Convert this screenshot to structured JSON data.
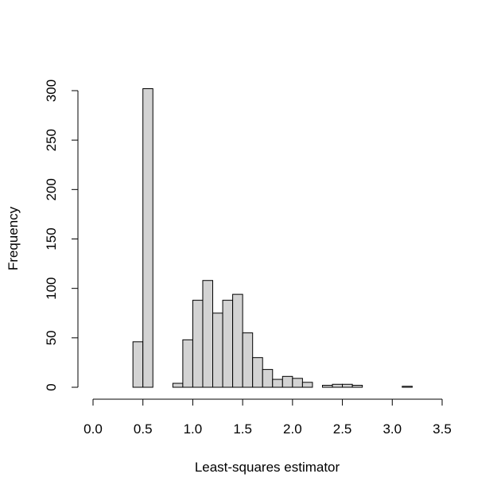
{
  "chart_data": {
    "type": "bar",
    "title": "",
    "xlabel": "Least-squares estimator",
    "ylabel": "Frequency",
    "xlim": [
      0.0,
      3.5
    ],
    "ylim": [
      0,
      300
    ],
    "x_ticks": [
      "0.0",
      "0.5",
      "1.0",
      "1.5",
      "2.0",
      "2.5",
      "3.0",
      "3.5"
    ],
    "y_ticks": [
      "0",
      "50",
      "100",
      "150",
      "200",
      "250",
      "300"
    ],
    "bin_width": 0.1,
    "bins": [
      {
        "start": 0.4,
        "end": 0.5,
        "count": 46
      },
      {
        "start": 0.5,
        "end": 0.6,
        "count": 302
      },
      {
        "start": 0.6,
        "end": 0.7,
        "count": 0
      },
      {
        "start": 0.7,
        "end": 0.8,
        "count": 0
      },
      {
        "start": 0.8,
        "end": 0.9,
        "count": 4
      },
      {
        "start": 0.9,
        "end": 1.0,
        "count": 48
      },
      {
        "start": 1.0,
        "end": 1.1,
        "count": 88
      },
      {
        "start": 1.1,
        "end": 1.2,
        "count": 108
      },
      {
        "start": 1.2,
        "end": 1.3,
        "count": 75
      },
      {
        "start": 1.3,
        "end": 1.4,
        "count": 88
      },
      {
        "start": 1.4,
        "end": 1.5,
        "count": 94
      },
      {
        "start": 1.5,
        "end": 1.6,
        "count": 55
      },
      {
        "start": 1.6,
        "end": 1.7,
        "count": 30
      },
      {
        "start": 1.7,
        "end": 1.8,
        "count": 18
      },
      {
        "start": 1.8,
        "end": 1.9,
        "count": 8
      },
      {
        "start": 1.9,
        "end": 2.0,
        "count": 11
      },
      {
        "start": 2.0,
        "end": 2.1,
        "count": 9
      },
      {
        "start": 2.1,
        "end": 2.2,
        "count": 5
      },
      {
        "start": 2.2,
        "end": 2.3,
        "count": 0
      },
      {
        "start": 2.3,
        "end": 2.4,
        "count": 2
      },
      {
        "start": 2.4,
        "end": 2.5,
        "count": 3
      },
      {
        "start": 2.5,
        "end": 2.6,
        "count": 3
      },
      {
        "start": 2.6,
        "end": 2.7,
        "count": 2
      },
      {
        "start": 2.7,
        "end": 2.8,
        "count": 0
      },
      {
        "start": 2.8,
        "end": 2.9,
        "count": 0
      },
      {
        "start": 2.9,
        "end": 3.0,
        "count": 0
      },
      {
        "start": 3.0,
        "end": 3.1,
        "count": 0
      },
      {
        "start": 3.1,
        "end": 3.2,
        "count": 1
      }
    ],
    "grid": false,
    "bar_color": "#d3d3d3",
    "border_color": "#000000"
  }
}
